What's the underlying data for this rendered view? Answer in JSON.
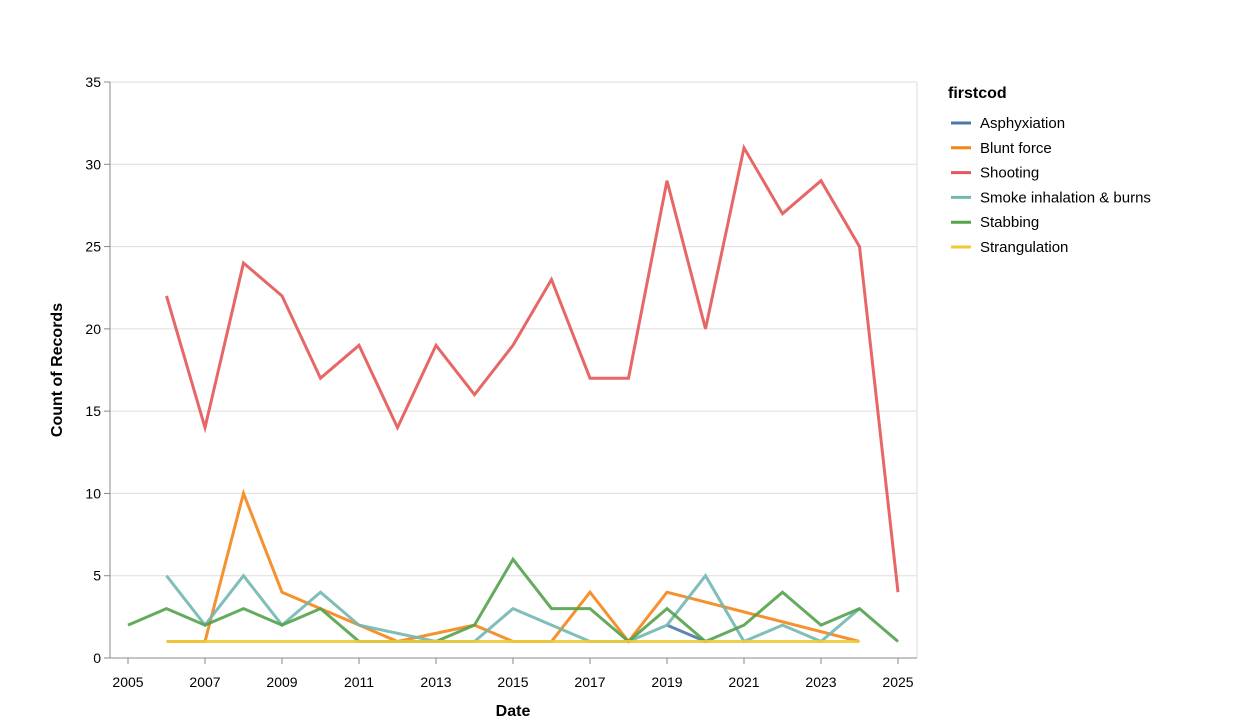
{
  "chart_data": {
    "type": "line",
    "xlabel": "Date",
    "ylabel": "Count of Records",
    "xlim": [
      2005,
      2025
    ],
    "ylim": [
      0,
      35
    ],
    "x_ticks": [
      "2005",
      "2007",
      "2009",
      "2011",
      "2013",
      "2015",
      "2017",
      "2019",
      "2021",
      "2023",
      "2025"
    ],
    "y_ticks": [
      "0",
      "5",
      "10",
      "15",
      "20",
      "25",
      "30",
      "35"
    ],
    "grid": true,
    "legend": {
      "title": "firstcod",
      "position": "right"
    },
    "series": [
      {
        "name": "Asphyxiation",
        "color": "#4c78a8",
        "points": [
          [
            2019,
            2
          ],
          [
            2020,
            1
          ]
        ]
      },
      {
        "name": "Blunt force",
        "color": "#f58518",
        "points": [
          [
            2006,
            1
          ],
          [
            2007,
            1
          ],
          [
            2008,
            10
          ],
          [
            2009,
            4
          ],
          [
            2010,
            3
          ],
          [
            2012,
            1
          ],
          [
            2014,
            2
          ],
          [
            2015,
            1
          ],
          [
            2016,
            1
          ],
          [
            2017,
            4
          ],
          [
            2018,
            1
          ],
          [
            2019,
            4
          ],
          [
            2024,
            1
          ]
        ]
      },
      {
        "name": "Shooting",
        "color": "#e45756",
        "points": [
          [
            2006,
            22
          ],
          [
            2007,
            14
          ],
          [
            2008,
            24
          ],
          [
            2009,
            22
          ],
          [
            2010,
            17
          ],
          [
            2011,
            19
          ],
          [
            2012,
            14
          ],
          [
            2013,
            19
          ],
          [
            2014,
            16
          ],
          [
            2015,
            19
          ],
          [
            2016,
            23
          ],
          [
            2017,
            17
          ],
          [
            2018,
            17
          ],
          [
            2019,
            29
          ],
          [
            2020,
            20
          ],
          [
            2021,
            31
          ],
          [
            2022,
            27
          ],
          [
            2023,
            29
          ],
          [
            2024,
            25
          ],
          [
            2025,
            4
          ]
        ]
      },
      {
        "name": "Smoke inhalation & burns",
        "color": "#72b7b2",
        "points": [
          [
            2006,
            5
          ],
          [
            2007,
            2
          ],
          [
            2008,
            5
          ],
          [
            2009,
            2
          ],
          [
            2010,
            4
          ],
          [
            2011,
            2
          ],
          [
            2013,
            1
          ],
          [
            2014,
            1
          ],
          [
            2015,
            3
          ],
          [
            2017,
            1
          ],
          [
            2018,
            1
          ],
          [
            2019,
            2
          ],
          [
            2020,
            5
          ],
          [
            2021,
            1
          ],
          [
            2022,
            2
          ],
          [
            2023,
            1
          ],
          [
            2024,
            3
          ]
        ]
      },
      {
        "name": "Stabbing",
        "color": "#54a24b",
        "points": [
          [
            2005,
            2
          ],
          [
            2006,
            3
          ],
          [
            2007,
            2
          ],
          [
            2008,
            3
          ],
          [
            2009,
            2
          ],
          [
            2010,
            3
          ],
          [
            2011,
            1
          ],
          [
            2013,
            1
          ],
          [
            2014,
            2
          ],
          [
            2015,
            6
          ],
          [
            2016,
            3
          ],
          [
            2017,
            3
          ],
          [
            2018,
            1
          ],
          [
            2019,
            3
          ],
          [
            2020,
            1
          ],
          [
            2021,
            2
          ],
          [
            2022,
            4
          ],
          [
            2023,
            2
          ],
          [
            2024,
            3
          ],
          [
            2025,
            1
          ]
        ]
      },
      {
        "name": "Strangulation",
        "color": "#eeca3b",
        "points": [
          [
            2006,
            1
          ],
          [
            2024,
            1
          ]
        ]
      }
    ]
  }
}
